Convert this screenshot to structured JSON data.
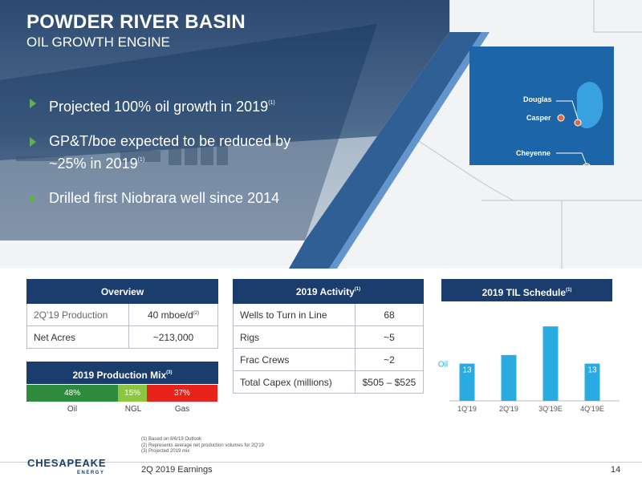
{
  "header": {
    "title": "POWDER RIVER BASIN",
    "subtitle": "OIL GROWTH ENGINE"
  },
  "bullets": [
    {
      "text": "Projected 100% oil growth in 2019",
      "note": "(1)"
    },
    {
      "text_line1": "GP&T/boe expected to be reduced by",
      "text_line2": "~25% in 2019",
      "note": "(1)"
    },
    {
      "text": "Drilled first Niobrara well since 2014"
    }
  ],
  "map": {
    "labels": [
      "Douglas",
      "Casper",
      "Cheyenne"
    ],
    "colors": {
      "inset": "#1c65a8",
      "basin": "#3aa1e0",
      "marker": "#e06a3a"
    }
  },
  "overview": {
    "header": "Overview",
    "rows": [
      {
        "label": "2Q'19 Production",
        "value": "40 mboe/d",
        "note": "(2)"
      },
      {
        "label": "Net Acres",
        "value": "~213,000"
      }
    ]
  },
  "production_mix": {
    "header": "2019 Production Mix",
    "note": "(3)",
    "segments": [
      {
        "name": "Oil",
        "percent": 48,
        "label": "48%",
        "color": "#2e8b3e"
      },
      {
        "name": "NGL",
        "percent": 15,
        "label": "15%",
        "color": "#8cc63f"
      },
      {
        "name": "Gas",
        "percent": 37,
        "label": "37%",
        "color": "#e8231c"
      }
    ]
  },
  "activity": {
    "header": "2019 Activity",
    "note": "(1)",
    "rows": [
      {
        "label": "Wells to Turn in Line",
        "value": "68"
      },
      {
        "label": "Rigs",
        "value": "~5"
      },
      {
        "label": "Frac Crews",
        "value": "~2"
      },
      {
        "label": "Total Capex (millions)",
        "value": "$505 – $525"
      }
    ]
  },
  "chart_data": {
    "type": "bar",
    "title": "2019 TIL Schedule",
    "title_note": "(1)",
    "categories": [
      "1Q'19",
      "2Q'19",
      "3Q'19E",
      "4Q'19E"
    ],
    "series": [
      {
        "name": "Oil",
        "values": [
          13,
          16,
          26,
          13
        ],
        "color": "#29abe2"
      }
    ],
    "ylim": [
      0,
      28
    ]
  },
  "footnotes": [
    "(1)  Based on 8/6/19 Outlook",
    "(2)  Represents average net production volumes for 2Q'19",
    "(3)  Projected 2019 mix"
  ],
  "footer": {
    "logo_text": "CHESAPEAKE",
    "logo_sub": "ENERGY",
    "doc_title": "2Q 2019 Earnings",
    "page_number": "14"
  }
}
